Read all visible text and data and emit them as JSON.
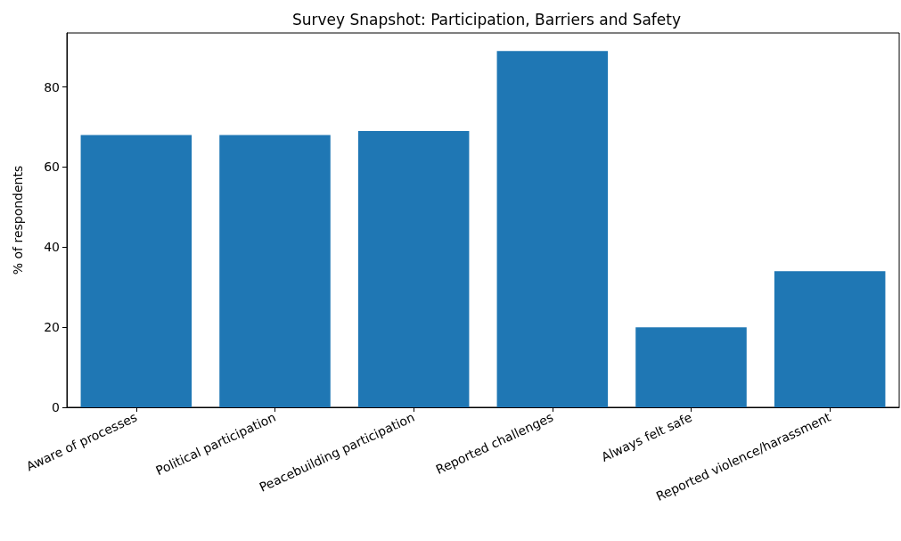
{
  "chart_data": {
    "type": "bar",
    "title": "Survey Snapshot: Participation, Barriers and Safety",
    "ylabel": "% of respondents",
    "categories": [
      "Aware of processes",
      "Political participation",
      "Peacebuilding participation",
      "Reported challenges",
      "Always felt safe",
      "Reported violence/harassment"
    ],
    "values": [
      68,
      68,
      69,
      89,
      20,
      34
    ],
    "color": "#1f77b4",
    "ylim": [
      0,
      93.5
    ],
    "yticks": [
      0,
      20,
      40,
      60,
      80
    ],
    "grid": false
  }
}
